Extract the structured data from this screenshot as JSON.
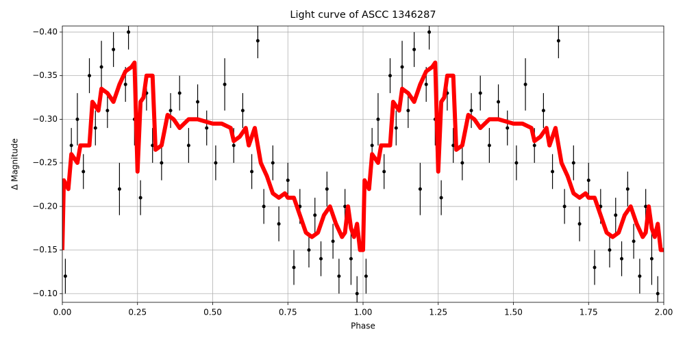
{
  "chart_data": {
    "type": "scatter",
    "title": "Light curve of ASCC 1346287",
    "x_label": "Phase",
    "y_label": "Δ Magnitude",
    "xlim": [
      0,
      2
    ],
    "ylim": [
      -0.09,
      -0.407
    ],
    "xticks": [
      {
        "value": 0,
        "label": "0.00"
      },
      {
        "value": 0.25,
        "label": "0.25"
      },
      {
        "value": 0.5,
        "label": "0.50"
      },
      {
        "value": 0.75,
        "label": "0.75"
      },
      {
        "value": 1,
        "label": "1.00"
      },
      {
        "value": 1.25,
        "label": "1.25"
      },
      {
        "value": 1.5,
        "label": "1.50"
      },
      {
        "value": 1.75,
        "label": "1.75"
      },
      {
        "value": 2,
        "label": "2.00"
      }
    ],
    "yticks": [
      {
        "value": -0.4,
        "label": "−0.40"
      },
      {
        "value": -0.35,
        "label": "−0.35"
      },
      {
        "value": -0.3,
        "label": "−0.30"
      },
      {
        "value": -0.25,
        "label": "−0.25"
      },
      {
        "value": -0.2,
        "label": "−0.20"
      },
      {
        "value": -0.15,
        "label": "−0.15"
      },
      {
        "value": -0.1,
        "label": "−0.10"
      }
    ],
    "grid": true,
    "series": [
      {
        "type": "errorbar",
        "color": "#000000",
        "x": [
          0.01,
          0.03,
          0.05,
          0.07,
          0.09,
          0.11,
          0.13,
          0.15,
          0.17,
          0.19,
          0.21,
          0.22,
          0.24,
          0.26,
          0.28,
          0.3,
          0.33,
          0.36,
          0.39,
          0.42,
          0.45,
          0.48,
          0.51,
          0.54,
          0.57,
          0.6,
          0.63,
          0.65,
          0.67,
          0.7,
          0.72,
          0.75,
          0.77,
          0.79,
          0.82,
          0.84,
          0.86,
          0.88,
          0.9,
          0.92,
          0.94,
          0.96,
          0.98,
          1.01,
          1.03,
          1.05,
          1.07,
          1.09,
          1.11,
          1.13,
          1.15,
          1.17,
          1.19,
          1.21,
          1.22,
          1.24,
          1.26,
          1.28,
          1.3,
          1.33,
          1.36,
          1.39,
          1.42,
          1.45,
          1.48,
          1.51,
          1.54,
          1.57,
          1.6,
          1.63,
          1.65,
          1.67,
          1.7,
          1.72,
          1.75,
          1.77,
          1.79,
          1.82,
          1.84,
          1.86,
          1.88,
          1.9,
          1.92,
          1.94,
          1.96,
          1.98
        ],
        "values": [
          -0.12,
          -0.27,
          -0.3,
          -0.24,
          -0.35,
          -0.29,
          -0.36,
          -0.31,
          -0.38,
          -0.22,
          -0.34,
          -0.4,
          -0.3,
          -0.21,
          -0.33,
          -0.27,
          -0.25,
          -0.31,
          -0.33,
          -0.27,
          -0.32,
          -0.29,
          -0.25,
          -0.34,
          -0.27,
          -0.31,
          -0.24,
          -0.39,
          -0.2,
          -0.25,
          -0.18,
          -0.23,
          -0.13,
          -0.2,
          -0.15,
          -0.19,
          -0.14,
          -0.22,
          -0.16,
          -0.12,
          -0.2,
          -0.14,
          -0.1,
          -0.12,
          -0.27,
          -0.3,
          -0.24,
          -0.35,
          -0.29,
          -0.36,
          -0.31,
          -0.38,
          -0.22,
          -0.34,
          -0.4,
          -0.3,
          -0.21,
          -0.33,
          -0.27,
          -0.25,
          -0.31,
          -0.33,
          -0.27,
          -0.32,
          -0.29,
          -0.25,
          -0.34,
          -0.27,
          -0.31,
          -0.24,
          -0.39,
          -0.2,
          -0.25,
          -0.18,
          -0.23,
          -0.13,
          -0.2,
          -0.15,
          -0.19,
          -0.14,
          -0.22,
          -0.16,
          -0.12,
          -0.2,
          -0.14,
          -0.1
        ],
        "errors": [
          0.02,
          0.02,
          0.03,
          0.02,
          0.02,
          0.02,
          0.03,
          0.02,
          0.02,
          0.03,
          0.02,
          0.02,
          0.03,
          0.02,
          0.02,
          0.02,
          0.02,
          0.02,
          0.02,
          0.02,
          0.02,
          0.02,
          0.02,
          0.03,
          0.02,
          0.02,
          0.02,
          0.02,
          0.02,
          0.02,
          0.02,
          0.02,
          0.02,
          0.02,
          0.02,
          0.02,
          0.02,
          0.02,
          0.02,
          0.02,
          0.02,
          0.03,
          0.02,
          0.02,
          0.02,
          0.03,
          0.02,
          0.02,
          0.02,
          0.03,
          0.02,
          0.02,
          0.03,
          0.02,
          0.02,
          0.03,
          0.02,
          0.02,
          0.02,
          0.02,
          0.02,
          0.02,
          0.02,
          0.02,
          0.02,
          0.02,
          0.03,
          0.02,
          0.02,
          0.02,
          0.02,
          0.02,
          0.02,
          0.02,
          0.02,
          0.02,
          0.02,
          0.02,
          0.02,
          0.02,
          0.02,
          0.02,
          0.02,
          0.02,
          0.03,
          0.02
        ]
      },
      {
        "type": "line",
        "color": "#ff0000",
        "x": [
          0,
          0.005,
          0.02,
          0.03,
          0.05,
          0.06,
          0.08,
          0.09,
          0.1,
          0.12,
          0.13,
          0.15,
          0.17,
          0.19,
          0.21,
          0.23,
          0.24,
          0.25,
          0.26,
          0.27,
          0.28,
          0.3,
          0.31,
          0.33,
          0.35,
          0.37,
          0.39,
          0.42,
          0.45,
          0.5,
          0.53,
          0.56,
          0.57,
          0.59,
          0.61,
          0.62,
          0.64,
          0.66,
          0.68,
          0.7,
          0.72,
          0.74,
          0.75,
          0.77,
          0.79,
          0.81,
          0.83,
          0.85,
          0.87,
          0.89,
          0.91,
          0.93,
          0.94,
          0.95,
          0.96,
          0.97,
          0.98,
          0.99,
          1.0,
          1.005,
          1.02,
          1.03,
          1.05,
          1.06,
          1.08,
          1.09,
          1.1,
          1.12,
          1.13,
          1.15,
          1.17,
          1.19,
          1.21,
          1.23,
          1.24,
          1.25,
          1.26,
          1.27,
          1.28,
          1.3,
          1.31,
          1.33,
          1.35,
          1.37,
          1.39,
          1.42,
          1.45,
          1.5,
          1.53,
          1.56,
          1.57,
          1.59,
          1.61,
          1.62,
          1.64,
          1.66,
          1.68,
          1.7,
          1.72,
          1.74,
          1.75,
          1.77,
          1.79,
          1.81,
          1.83,
          1.85,
          1.87,
          1.89,
          1.91,
          1.93,
          1.94,
          1.95,
          1.96,
          1.97,
          1.98,
          1.99,
          2.0
        ],
        "values": [
          -0.15,
          -0.23,
          -0.22,
          -0.26,
          -0.25,
          -0.27,
          -0.27,
          -0.27,
          -0.32,
          -0.31,
          -0.335,
          -0.33,
          -0.32,
          -0.34,
          -0.355,
          -0.36,
          -0.365,
          -0.24,
          -0.32,
          -0.325,
          -0.35,
          -0.35,
          -0.265,
          -0.27,
          -0.305,
          -0.3,
          -0.29,
          -0.3,
          -0.3,
          -0.295,
          -0.295,
          -0.29,
          -0.275,
          -0.28,
          -0.29,
          -0.27,
          -0.29,
          -0.25,
          -0.235,
          -0.215,
          -0.21,
          -0.215,
          -0.21,
          -0.21,
          -0.19,
          -0.17,
          -0.165,
          -0.17,
          -0.19,
          -0.2,
          -0.18,
          -0.165,
          -0.17,
          -0.2,
          -0.175,
          -0.165,
          -0.18,
          -0.15,
          -0.15,
          -0.23,
          -0.22,
          -0.26,
          -0.25,
          -0.27,
          -0.27,
          -0.27,
          -0.32,
          -0.31,
          -0.335,
          -0.33,
          -0.32,
          -0.34,
          -0.355,
          -0.36,
          -0.365,
          -0.24,
          -0.32,
          -0.325,
          -0.35,
          -0.35,
          -0.265,
          -0.27,
          -0.305,
          -0.3,
          -0.29,
          -0.3,
          -0.3,
          -0.295,
          -0.295,
          -0.29,
          -0.275,
          -0.28,
          -0.29,
          -0.27,
          -0.29,
          -0.25,
          -0.235,
          -0.215,
          -0.21,
          -0.215,
          -0.21,
          -0.21,
          -0.19,
          -0.17,
          -0.165,
          -0.17,
          -0.19,
          -0.2,
          -0.18,
          -0.165,
          -0.17,
          -0.2,
          -0.175,
          -0.165,
          -0.18,
          -0.15,
          -0.15
        ]
      }
    ]
  }
}
